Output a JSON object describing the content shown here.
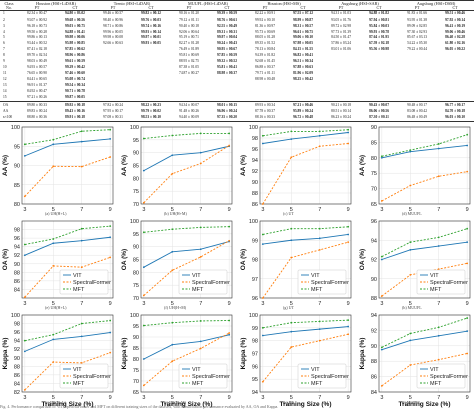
{
  "table": {
    "headers": {
      "class_label": "Class",
      "no_label": "No.",
      "datasets": [
        "Houston (HSI+LiDAR)",
        "Trento (HSI+LiDAR)",
        "MUUFL (HSI+LiDAR)",
        "Houston (HSI+MS)",
        "Augsburg (HSI+SAR)",
        "Augsburg (HSI+DSM)"
      ],
      "methods": [
        "PT",
        "CT",
        "PT",
        "CT",
        "PT",
        "CT",
        "PT",
        "CT",
        "PT",
        "CT",
        "PT",
        "CT"
      ]
    },
    "rows": [
      [
        "1",
        "82.34 ± 00.47",
        "94.80 ± 03.02",
        "99.46 ± 00.57",
        "99.82 ± 00.12",
        "90.16 ± 01.20",
        "99.39 ± 00.59",
        "82.22 ± 00.91",
        "97.55 ± 07.12",
        "94.31 ± 01.03",
        "94.88 ± 01.82",
        "91.83 ± 01.66",
        "99.51 ± 00.46"
      ],
      [
        "2",
        "93.07 ± 00.92",
        "99.68 ± 00.56",
        "98.40 ± 00.96",
        "99.76 ± 00.03",
        "79.12 ± 01.11",
        "98.76 ± 00.61",
        "99.92 ± 00.10",
        "98.99 ± 00.87",
        "93.05 ± 01.76",
        "97.94 ± 00.81",
        "93.95 ± 01.38",
        "97.92 ± 00.14"
      ],
      [
        "3",
        "96.18 ± 00.73",
        "99.03 ± 00.75",
        "98.71 ± 00.86",
        "99.74 ± 00.16",
        "90.40 ± 00.18",
        "92.55 ± 00.49",
        "81.36 ± 00.97",
        "98.31 ± 00.57",
        "89.72 ± 02.98",
        "95.84 ± 00.03",
        "89.09 ± 02.85",
        "96.41 ± 00.19"
      ],
      [
        "4",
        "99.50 ± 00.28",
        "94.88 ± 01.41",
        "99.96 ± 00.05",
        "99.93 ± 00.14",
        "92.06 ± 00.64",
        "89.31 ± 00.31",
        "95.73 ± 00.69",
        "96.61 ± 00.75",
        "97.73 ± 01.39",
        "99.93 ± 00.78",
        "97.30 ± 02.93",
        "99.06 ± 00.46"
      ],
      [
        "5",
        "99.86 ± 00.13",
        "99.98 ± 00.06",
        "99.98 ± 00.08",
        "99.97 ± 00.01",
        "95.19 ± 00.71",
        "99.97 ± 00.04",
        "88.05 ± 01.28",
        "99.06 ± 00.10",
        "84.50 ± 01.47",
        "87.64 ± 01.95",
        "85.67 ± 03.13",
        "86.40 ± 02.28"
      ],
      [
        "6",
        "93.44 ± 00.52",
        "95.98 ± 00.85",
        "92.66 ± 00.63",
        "99.93 ± 00.05",
        "82.27 ± 01.28",
        "90.24 ± 00.43",
        "89.35 ± 01.52",
        "97.98 ± 00.05",
        "57.86 ± 03.24",
        "67.59 ± 02.18",
        "54.22 ± 05.30",
        "61.80 ± 02.16"
      ],
      [
        "7",
        "87.41 ± 02.18",
        "97.85 ± 00.62",
        "",
        "",
        "76.49 ± 01.89",
        "90.95 ± 00.67",
        "78.13 ± 00.84",
        "84.15 ± 01.55",
        "83.01 ± 01.06",
        "95.56 ± 00.98",
        "79.22 ± 00.44",
        "96.05 ± 00.22"
      ],
      [
        "8",
        "89.70 ± 02.54",
        "98.96 ± 00.86",
        "",
        "",
        "95.81 ± 00.69",
        "97.85 ± 00.59",
        "94.39 ± 01.82",
        "96.82 ± 00.41",
        "",
        "",
        "",
        ""
      ],
      [
        "9",
        "98.03 ± 00.49",
        "99.61 ± 00.59",
        "",
        "",
        "88.95 ± 02.75",
        "99.32 ± 00.52",
        "92.68 ± 01.45",
        "96.51 ± 00.34",
        "",
        "",
        "",
        ""
      ],
      [
        "10",
        "94.93 ± 00.57",
        "99.29 ± 00.42",
        "",
        "",
        "87.38 ± 01.05",
        "95.81 ± 00.41",
        "86.88 ± 00.37",
        "97.88 ± 00.63",
        "",
        "",
        "",
        ""
      ],
      [
        "11",
        "76.65 ± 00.90",
        "97.46 ± 00.60",
        "",
        "",
        "74.87 ± 00.27",
        "88.98 ± 00.37",
        "79.71 ± 01.11",
        "81.96 ± 02.09",
        "",
        "",
        "",
        ""
      ],
      [
        "12",
        "84.41 ± 00.65",
        "95.08 ± 00.74",
        "",
        "",
        "",
        "",
        "88.98 ± 00.48",
        "98.25 ± 00.42",
        "",
        "",
        "",
        ""
      ],
      [
        "13",
        "96.91 ± 01.37",
        "99.54 ± 00.34",
        "",
        "",
        "",
        "",
        "",
        "",
        "",
        "",
        "",
        ""
      ],
      [
        "14",
        "84.92 ± 00.47",
        "90.71 ± 00.78",
        "",
        "",
        "",
        "",
        "",
        "",
        "",
        "",
        "",
        ""
      ],
      [
        "15",
        "97.21 ± 00.26",
        "99.87 ± 00.05",
        "",
        "",
        "",
        "",
        "",
        "",
        "",
        "",
        "",
        ""
      ]
    ],
    "summary": [
      [
        "OA",
        "89.80 ± 00.33",
        "89.92 ± 00.18",
        "97.82 ± 00.24",
        "98.22 ± 00.23",
        "94.34 ± 00.07",
        "98.01 ± 00.15",
        "89.93 ± 00.34",
        "97.21 ± 00.46",
        "90.21 ± 00.18",
        "90.43 ± 00.07",
        "90.48 ± 00.17",
        "96.77 ± 00.17"
      ],
      [
        "AA",
        "89.83 ± 00.24",
        "89.43 ± 00.16",
        "97.95 ± 00.17",
        "99.79 ± 00.02",
        "91.48 ± 00.26",
        "96.96 ± 00.24",
        "87.78 ± 00.37",
        "95.89 ± 00.24",
        "80.51 ± 00.14",
        "86.06 ± 00.56",
        "83.08 ± 00.42",
        "84.70 ± 00.18"
      ],
      [
        "κ×100",
        "88.80 ± 00.36",
        "89.91 ± 00.18",
        "97.08 ± 00.31",
        "98.53 ± 00.10",
        "94.40 ± 00.09",
        "97.35 ± 00.20",
        "88.16 ± 00.33",
        "96.72 ± 00.48",
        "86.23 ± 00.24",
        "87.30 ± 00.11",
        "86.48 ± 00.49",
        "96.03 ± 00.10"
      ]
    ]
  },
  "chart_data": [
    {
      "type": "line",
      "metric": "AA",
      "caption": "(a) UH(H+L)",
      "ylabel": "AA (%)",
      "xlabel": "",
      "x": [
        3,
        5,
        7,
        9
      ],
      "ylim": [
        80,
        100
      ],
      "yticks": [
        80,
        85,
        90,
        95,
        100
      ],
      "series": [
        {
          "name": "",
          "color": "#1f77b4",
          "values": [
            92.5,
            95.5,
            96.2,
            96.9
          ]
        },
        {
          "name": "",
          "color": "#ff7f0e",
          "values": [
            82.0,
            89.8,
            89.7,
            92.2
          ]
        },
        {
          "name": "",
          "color": "#2ca02c",
          "values": [
            95.5,
            96.7,
            98.9,
            99.3
          ]
        }
      ]
    },
    {
      "type": "line",
      "metric": "AA",
      "caption": "(b) UH(H+M)",
      "ylabel": "AA (%)",
      "xlabel": "",
      "x": [
        3,
        5,
        7,
        9
      ],
      "ylim": [
        70,
        100
      ],
      "yticks": [
        70,
        75,
        80,
        85,
        90,
        95,
        100
      ],
      "series": [
        {
          "name": "",
          "color": "#1f77b4",
          "values": [
            83.0,
            89.0,
            90.0,
            92.5
          ]
        },
        {
          "name": "",
          "color": "#ff7f0e",
          "values": [
            70.5,
            81.8,
            85.8,
            92.8
          ]
        },
        {
          "name": "",
          "color": "#2ca02c",
          "values": [
            95.5,
            96.7,
            97.5,
            97.5
          ]
        }
      ]
    },
    {
      "type": "line",
      "metric": "AA",
      "caption": "(c) UT",
      "ylabel": "AA (%)",
      "xlabel": "",
      "x": [
        3,
        5,
        7,
        9
      ],
      "ylim": [
        86,
        100
      ],
      "yticks": [
        86,
        88,
        90,
        92,
        94,
        96,
        98,
        100
      ],
      "series": [
        {
          "name": "",
          "color": "#1f77b4",
          "values": [
            97.0,
            97.8,
            98.4,
            99.0
          ]
        },
        {
          "name": "",
          "color": "#ff7f0e",
          "values": [
            86.0,
            94.5,
            96.5,
            97.0
          ]
        },
        {
          "name": "",
          "color": "#2ca02c",
          "values": [
            98.4,
            99.2,
            99.2,
            99.5
          ]
        }
      ]
    },
    {
      "type": "line",
      "metric": "AA",
      "caption": "(d) MUUFL",
      "ylabel": "AA (%)",
      "xlabel": "",
      "x": [
        3,
        5,
        7,
        9
      ],
      "ylim": [
        65,
        90
      ],
      "yticks": [
        65,
        70,
        75,
        80,
        85,
        90
      ],
      "series": [
        {
          "name": "",
          "color": "#1f77b4",
          "values": [
            80.0,
            82.0,
            83.0,
            84.0
          ]
        },
        {
          "name": "",
          "color": "#ff7f0e",
          "values": [
            66.0,
            71.0,
            74.0,
            75.5
          ]
        },
        {
          "name": "",
          "color": "#2ca02c",
          "values": [
            80.5,
            82.5,
            84.5,
            87.5
          ]
        }
      ]
    },
    {
      "type": "line",
      "metric": "OA",
      "caption": "(e) UH(H+L)",
      "ylabel": "OA (%)",
      "xlabel": "",
      "x": [
        3,
        5,
        7,
        9
      ],
      "ylim": [
        82,
        100
      ],
      "yticks": [
        84,
        86,
        88,
        90,
        92,
        94,
        96,
        98
      ],
      "series": [
        {
          "name": "VIT",
          "color": "#1f77b4",
          "values": [
            92.0,
            94.8,
            95.4,
            96.2
          ]
        },
        {
          "name": "SpectralFormer",
          "color": "#ff7f0e",
          "values": [
            82.2,
            89.5,
            89.2,
            91.5
          ]
        },
        {
          "name": "MFT",
          "color": "#2ca02c",
          "values": [
            94.5,
            95.8,
            98.2,
            98.8
          ]
        }
      ]
    },
    {
      "type": "line",
      "metric": "OA",
      "caption": "(f) UH(H+M)",
      "ylabel": "OA (%)",
      "xlabel": "",
      "x": [
        3,
        5,
        7,
        9
      ],
      "ylim": [
        70,
        100
      ],
      "yticks": [
        70,
        75,
        80,
        85,
        90,
        95,
        100
      ],
      "series": [
        {
          "name": "VIT",
          "color": "#1f77b4",
          "values": [
            82.0,
            88.0,
            89.0,
            92.0
          ]
        },
        {
          "name": "SpectralFormer",
          "color": "#ff7f0e",
          "values": [
            71.0,
            80.8,
            86.0,
            92.3
          ]
        },
        {
          "name": "MFT",
          "color": "#2ca02c",
          "values": [
            95.6,
            96.8,
            97.5,
            97.8
          ]
        }
      ]
    },
    {
      "type": "line",
      "metric": "OA",
      "caption": "(g) UT",
      "ylabel": "OA (%)",
      "xlabel": "",
      "x": [
        3,
        5,
        7,
        9
      ],
      "ylim": [
        96,
        100
      ],
      "yticks": [
        96,
        97,
        98,
        99,
        100
      ],
      "series": [
        {
          "name": "VIT",
          "color": "#1f77b4",
          "values": [
            98.8,
            99.0,
            99.1,
            99.3
          ]
        },
        {
          "name": "SpectralFormer",
          "color": "#ff7f0e",
          "values": [
            96.0,
            98.1,
            98.5,
            98.9
          ]
        },
        {
          "name": "MFT",
          "color": "#2ca02c",
          "values": [
            99.3,
            99.6,
            99.6,
            99.7
          ]
        }
      ]
    },
    {
      "type": "line",
      "metric": "OA",
      "caption": "(h) MUUFL",
      "ylabel": "OA (%)",
      "xlabel": "",
      "x": [
        3,
        5,
        7,
        9
      ],
      "ylim": [
        88,
        96
      ],
      "yticks": [
        88,
        90,
        92,
        94,
        96
      ],
      "series": [
        {
          "name": "VIT",
          "color": "#1f77b4",
          "values": [
            92.0,
            93.0,
            93.4,
            93.8
          ]
        },
        {
          "name": "SpectralFormer",
          "color": "#ff7f0e",
          "values": [
            88.2,
            90.4,
            91.0,
            91.6
          ]
        },
        {
          "name": "MFT",
          "color": "#2ca02c",
          "values": [
            92.3,
            93.8,
            94.3,
            95.2
          ]
        }
      ]
    },
    {
      "type": "line",
      "metric": "Kappa",
      "caption": "(i) UH(H+L)",
      "ylabel": "Kappa (%)",
      "xlabel": "Training Size (%)",
      "x": [
        3,
        5,
        7,
        9
      ],
      "ylim": [
        82,
        100
      ],
      "yticks": [
        82,
        84,
        86,
        88,
        90,
        92,
        94,
        96,
        98,
        100
      ],
      "series": [
        {
          "name": "VIT",
          "color": "#1f77b4",
          "values": [
            91.5,
            94.3,
            95.0,
            95.9
          ]
        },
        {
          "name": "SpectralFormer",
          "color": "#ff7f0e",
          "values": [
            82.5,
            89.0,
            88.8,
            91.2
          ]
        },
        {
          "name": "MFT",
          "color": "#2ca02c",
          "values": [
            94.0,
            95.4,
            98.0,
            98.7
          ]
        }
      ]
    },
    {
      "type": "line",
      "metric": "Kappa",
      "caption": "(j) UH(H+M)",
      "ylabel": "Kappa (%)",
      "xlabel": "Training Size (%)",
      "x": [
        3,
        5,
        7,
        9
      ],
      "ylim": [
        65,
        100
      ],
      "yticks": [
        65,
        70,
        75,
        80,
        85,
        90,
        95,
        100
      ],
      "series": [
        {
          "name": "VIT",
          "color": "#1f77b4",
          "values": [
            80.0,
            86.5,
            88.0,
            91.0
          ]
        },
        {
          "name": "SpectralFormer",
          "color": "#ff7f0e",
          "values": [
            68.0,
            79.0,
            84.8,
            91.8
          ]
        },
        {
          "name": "MFT",
          "color": "#2ca02c",
          "values": [
            95.2,
            96.5,
            97.3,
            97.5
          ]
        }
      ]
    },
    {
      "type": "line",
      "metric": "Kappa",
      "caption": "(k) UT",
      "ylabel": "Kappa (%)",
      "xlabel": "Training Size (%)",
      "x": [
        3,
        5,
        7,
        9
      ],
      "ylim": [
        94,
        100
      ],
      "yticks": [
        94,
        95,
        96,
        97,
        98,
        99,
        100
      ],
      "series": [
        {
          "name": "VIT",
          "color": "#1f77b4",
          "values": [
            98.4,
            98.7,
            98.9,
            99.1
          ]
        },
        {
          "name": "SpectralFormer",
          "color": "#ff7f0e",
          "values": [
            94.8,
            97.5,
            98.0,
            98.5
          ]
        },
        {
          "name": "MFT",
          "color": "#2ca02c",
          "values": [
            99.0,
            99.4,
            99.5,
            99.6
          ]
        }
      ]
    },
    {
      "type": "line",
      "metric": "Kappa",
      "caption": "(l) MUUFL",
      "ylabel": "Kappa (%)",
      "xlabel": "Training Size (%)",
      "x": [
        3,
        5,
        7,
        9
      ],
      "ylim": [
        84,
        94
      ],
      "yticks": [
        84,
        86,
        88,
        90,
        92,
        94
      ],
      "series": [
        {
          "name": "VIT",
          "color": "#1f77b4",
          "values": [
            89.5,
            90.7,
            91.3,
            91.9
          ]
        },
        {
          "name": "SpectralFormer",
          "color": "#ff7f0e",
          "values": [
            84.8,
            87.5,
            88.2,
            89.0
          ]
        },
        {
          "name": "MFT",
          "color": "#2ca02c",
          "values": [
            89.8,
            91.6,
            92.4,
            93.6
          ]
        }
      ]
    }
  ],
  "figure_caption": "Fig. 4. Performance comparison of ViT, SpectralFormer and MFT on different training sizes of the datasets, with classification performance evaluated by AA, OA and Kappa."
}
